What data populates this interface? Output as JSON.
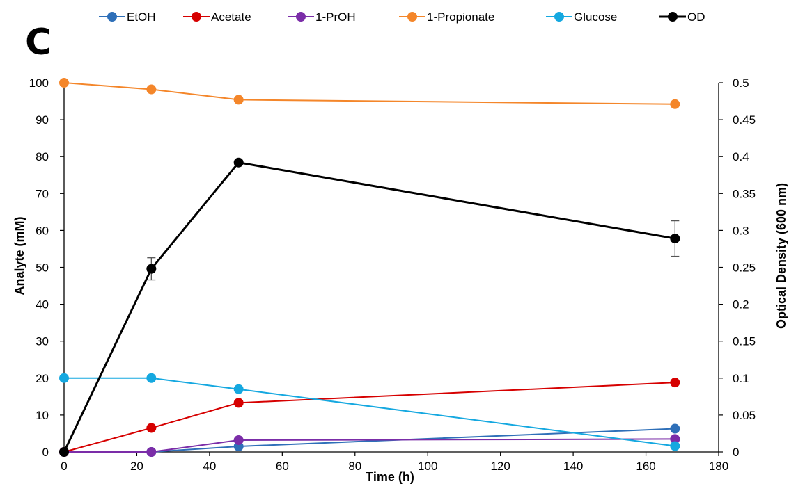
{
  "panel_label": "C",
  "chart_data": {
    "type": "line",
    "x": [
      0,
      24,
      48,
      168
    ],
    "xlabel": "Time (h)",
    "ylabel": "Analyte (mM)",
    "y2label": "Optical Density (600 nm)",
    "xlim": [
      0,
      180
    ],
    "ylim": [
      0,
      100
    ],
    "y2lim": [
      0,
      0.5
    ],
    "xticks": [
      "0",
      "20",
      "40",
      "60",
      "80",
      "100",
      "120",
      "140",
      "160",
      "180"
    ],
    "yticks": [
      "0",
      "10",
      "20",
      "30",
      "40",
      "50",
      "60",
      "70",
      "80",
      "90",
      "100"
    ],
    "y2ticks": [
      "0",
      "0.05",
      "0.1",
      "0.15",
      "0.2",
      "0.25",
      "0.3",
      "0.35",
      "0.4",
      "0.45",
      "0.5"
    ],
    "grid": false,
    "legend_position": "top",
    "series": [
      {
        "name": "EtOH",
        "color": "#2E6FB8",
        "axis": "left",
        "values": [
          0,
          0,
          1.5,
          6.3
        ]
      },
      {
        "name": "Acetate",
        "color": "#D60000",
        "axis": "left",
        "values": [
          0,
          6.5,
          13.3,
          18.8
        ]
      },
      {
        "name": "1-PrOH",
        "color": "#7B2DA8",
        "axis": "left",
        "values": [
          0,
          0,
          3.2,
          3.5
        ]
      },
      {
        "name": "1-Propionate",
        "color": "#F4862A",
        "axis": "left",
        "values": [
          100,
          98.2,
          95.4,
          94.2
        ]
      },
      {
        "name": "Glucose",
        "color": "#15A8E0",
        "axis": "left",
        "values": [
          20,
          20,
          17,
          1.6
        ]
      },
      {
        "name": "OD",
        "color": "#000000",
        "axis": "right",
        "values": [
          0,
          0.248,
          0.392,
          0.289
        ],
        "error": [
          0,
          0.015,
          0,
          0.024
        ]
      }
    ]
  }
}
